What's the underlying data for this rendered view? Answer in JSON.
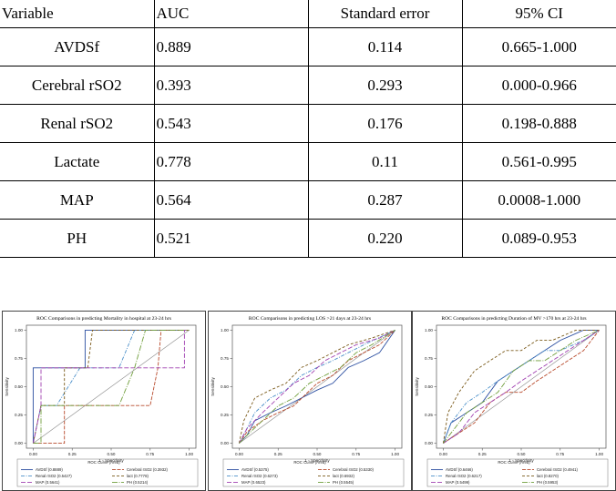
{
  "table": {
    "headers": [
      "Variable",
      "AUC",
      "Standard error",
      "95% CI"
    ],
    "rows": [
      [
        "AVDSf",
        "0.889",
        "0.114",
        "0.665-1.000"
      ],
      [
        "Cerebral rSO2",
        "0.393",
        "0.293",
        "0.000-0.966"
      ],
      [
        "Renal rSO2",
        "0.543",
        "0.176",
        "0.198-0.888"
      ],
      [
        "Lactate",
        "0.778",
        "0.11",
        "0.561-0.995"
      ],
      [
        "MAP",
        "0.564",
        "0.287",
        "0.0008-1.000"
      ],
      [
        "PH",
        "0.521",
        "0.220",
        "0.089-0.953"
      ]
    ]
  },
  "chart_data": [
    {
      "type": "line",
      "title": "ROC Comparisons in predicting Mortality in hospital at 23-24 hrs",
      "xlabel": "1 - Specificity",
      "ylabel": "Sensitivity",
      "xlim": [
        0,
        1
      ],
      "ylim": [
        0,
        1
      ],
      "xticks": [
        "0.00",
        "0.25",
        "0.50",
        "0.75",
        "1.00"
      ],
      "yticks": [
        "0.00",
        "0.25",
        "0.50",
        "0.75",
        "1.00"
      ],
      "legend_title": "ROC Curve (Area)",
      "legend_position": "bottom",
      "series": [
        {
          "name": "AVDSf (0.8889)",
          "color": "#2b4ea0",
          "dash": "",
          "points": [
            [
              0,
              0
            ],
            [
              0,
              0.667
            ],
            [
              0.333,
              0.667
            ],
            [
              0.333,
              1
            ],
            [
              1,
              1
            ]
          ]
        },
        {
          "name": "Cerebral rSO2 (0.3932)",
          "color": "#b84a2c",
          "dash": "4,1.5",
          "points": [
            [
              0,
              0
            ],
            [
              0.2,
              0
            ],
            [
              0.2,
              0.333
            ],
            [
              0.75,
              0.333
            ],
            [
              0.8,
              0.667
            ],
            [
              0.82,
              1
            ],
            [
              1,
              1
            ]
          ]
        },
        {
          "name": "Renal rSO2 (0.5427)",
          "color": "#4a8fc9",
          "dash": "4,1.5,1,1.5",
          "points": [
            [
              0,
              0
            ],
            [
              0.05,
              0.333
            ],
            [
              0.15,
              0.333
            ],
            [
              0.3,
              0.667
            ],
            [
              0.55,
              0.667
            ],
            [
              0.65,
              1
            ],
            [
              1,
              1
            ]
          ]
        },
        {
          "name": "lact (0.7778)",
          "color": "#7a5a1a",
          "dash": "3,2",
          "points": [
            [
              0,
              0
            ],
            [
              0.05,
              0.333
            ],
            [
              0.2,
              0.333
            ],
            [
              0.2,
              0.667
            ],
            [
              0.35,
              0.667
            ],
            [
              0.38,
              1
            ],
            [
              1,
              1
            ]
          ]
        },
        {
          "name": "MAP (0.5641)",
          "color": "#a040b0",
          "dash": "5,2",
          "points": [
            [
              0,
              0
            ],
            [
              0.05,
              0.333
            ],
            [
              0.05,
              0.667
            ],
            [
              0.97,
              0.667
            ],
            [
              0.97,
              1
            ],
            [
              1,
              1
            ]
          ]
        },
        {
          "name": "PH (0.5214)",
          "color": "#6f9e3a",
          "dash": "6,1.5,1,1.5",
          "points": [
            [
              0,
              0
            ],
            [
              0.05,
              0
            ],
            [
              0.05,
              0.333
            ],
            [
              0.55,
              0.333
            ],
            [
              0.65,
              0.667
            ],
            [
              0.72,
              1
            ],
            [
              1,
              1
            ]
          ]
        }
      ]
    },
    {
      "type": "line",
      "title": "ROC Comparisons in predicting LOS >21 days at 23-24 hrs",
      "xlabel": "1 - Specificity",
      "ylabel": "Sensitivity",
      "xlim": [
        0,
        1
      ],
      "ylim": [
        0,
        1
      ],
      "xticks": [
        "0.00",
        "0.25",
        "0.50",
        "0.75",
        "1.00"
      ],
      "yticks": [
        "0.00",
        "0.25",
        "0.50",
        "0.75",
        "1.00"
      ],
      "legend_title": "ROC Curve (Area)",
      "legend_position": "bottom",
      "series": [
        {
          "name": "AVDSf (0.5375)",
          "color": "#2b4ea0",
          "dash": "",
          "points": [
            [
              0,
              0
            ],
            [
              0.05,
              0.07
            ],
            [
              0.1,
              0.2
            ],
            [
              0.2,
              0.27
            ],
            [
              0.3,
              0.33
            ],
            [
              0.4,
              0.4
            ],
            [
              0.5,
              0.47
            ],
            [
              0.6,
              0.53
            ],
            [
              0.7,
              0.67
            ],
            [
              0.8,
              0.73
            ],
            [
              0.9,
              0.8
            ],
            [
              1,
              1
            ]
          ]
        },
        {
          "name": "Cerebral rSO2 (0.5330)",
          "color": "#b84a2c",
          "dash": "4,1.5",
          "points": [
            [
              0,
              0
            ],
            [
              0.05,
              0.1
            ],
            [
              0.15,
              0.2
            ],
            [
              0.25,
              0.27
            ],
            [
              0.35,
              0.33
            ],
            [
              0.5,
              0.53
            ],
            [
              0.6,
              0.6
            ],
            [
              0.7,
              0.73
            ],
            [
              0.8,
              0.8
            ],
            [
              0.9,
              0.87
            ],
            [
              1,
              1
            ]
          ]
        },
        {
          "name": "Renal rSO2 (0.6273)",
          "color": "#4a8fc9",
          "dash": "4,1.5,1,1.5",
          "points": [
            [
              0,
              0
            ],
            [
              0.05,
              0.13
            ],
            [
              0.1,
              0.27
            ],
            [
              0.2,
              0.4
            ],
            [
              0.3,
              0.47
            ],
            [
              0.4,
              0.6
            ],
            [
              0.5,
              0.67
            ],
            [
              0.6,
              0.73
            ],
            [
              0.7,
              0.8
            ],
            [
              0.8,
              0.87
            ],
            [
              1,
              1
            ]
          ]
        },
        {
          "name": "lact (0.6932)",
          "color": "#7a5a1a",
          "dash": "3,2",
          "points": [
            [
              0,
              0
            ],
            [
              0.03,
              0.2
            ],
            [
              0.1,
              0.4
            ],
            [
              0.2,
              0.47
            ],
            [
              0.3,
              0.53
            ],
            [
              0.4,
              0.67
            ],
            [
              0.5,
              0.73
            ],
            [
              0.6,
              0.8
            ],
            [
              0.7,
              0.87
            ],
            [
              0.85,
              0.93
            ],
            [
              1,
              1
            ]
          ]
        },
        {
          "name": "MAP (0.6523)",
          "color": "#a040b0",
          "dash": "5,2",
          "points": [
            [
              0,
              0
            ],
            [
              0.05,
              0.13
            ],
            [
              0.15,
              0.27
            ],
            [
              0.25,
              0.4
            ],
            [
              0.35,
              0.53
            ],
            [
              0.45,
              0.6
            ],
            [
              0.55,
              0.73
            ],
            [
              0.65,
              0.8
            ],
            [
              0.75,
              0.87
            ],
            [
              0.9,
              0.93
            ],
            [
              1,
              1
            ]
          ]
        },
        {
          "name": "PH (0.5545)",
          "color": "#6f9e3a",
          "dash": "6,1.5,1,1.5",
          "points": [
            [
              0,
              0
            ],
            [
              0.05,
              0.07
            ],
            [
              0.15,
              0.2
            ],
            [
              0.25,
              0.33
            ],
            [
              0.35,
              0.4
            ],
            [
              0.45,
              0.53
            ],
            [
              0.55,
              0.6
            ],
            [
              0.65,
              0.67
            ],
            [
              0.75,
              0.8
            ],
            [
              0.85,
              0.87
            ],
            [
              1,
              1
            ]
          ]
        }
      ]
    },
    {
      "type": "line",
      "title": "ROC Comparisons in predicting Duration of MV >170 hrs at 23-24 hrs",
      "xlabel": "1 - Specificity",
      "ylabel": "Sensitivity",
      "xlim": [
        0,
        1
      ],
      "ylim": [
        0,
        1
      ],
      "xticks": [
        "0.00",
        "0.25",
        "0.50",
        "0.75",
        "1.00"
      ],
      "yticks": [
        "0.00",
        "0.25",
        "0.50",
        "0.75",
        "1.00"
      ],
      "legend_title": "ROC Curve (Area)",
      "legend_position": "bottom",
      "series": [
        {
          "name": "AVDSf (0.6466)",
          "color": "#2b4ea0",
          "dash": "",
          "points": [
            [
              0,
              0
            ],
            [
              0.05,
              0.18
            ],
            [
              0.15,
              0.27
            ],
            [
              0.25,
              0.36
            ],
            [
              0.35,
              0.55
            ],
            [
              0.45,
              0.64
            ],
            [
              0.55,
              0.73
            ],
            [
              0.65,
              0.82
            ],
            [
              0.75,
              0.91
            ],
            [
              0.9,
              1
            ],
            [
              1,
              1
            ]
          ]
        },
        {
          "name": "Cerebral rSO2 (0.4941)",
          "color": "#b84a2c",
          "dash": "4,1.5",
          "points": [
            [
              0,
              0
            ],
            [
              0.1,
              0.09
            ],
            [
              0.2,
              0.18
            ],
            [
              0.3,
              0.36
            ],
            [
              0.4,
              0.45
            ],
            [
              0.5,
              0.45
            ],
            [
              0.6,
              0.55
            ],
            [
              0.7,
              0.64
            ],
            [
              0.8,
              0.73
            ],
            [
              0.9,
              0.82
            ],
            [
              1,
              1
            ]
          ]
        },
        {
          "name": "Renal rSO2 (0.6217)",
          "color": "#4a8fc9",
          "dash": "4,1.5,1,1.5",
          "points": [
            [
              0,
              0
            ],
            [
              0.05,
              0.18
            ],
            [
              0.15,
              0.36
            ],
            [
              0.25,
              0.45
            ],
            [
              0.35,
              0.55
            ],
            [
              0.45,
              0.64
            ],
            [
              0.55,
              0.73
            ],
            [
              0.65,
              0.82
            ],
            [
              0.75,
              0.82
            ],
            [
              0.9,
              0.91
            ],
            [
              1,
              1
            ]
          ]
        },
        {
          "name": "lact (0.8270)",
          "color": "#7a5a1a",
          "dash": "3,2",
          "points": [
            [
              0,
              0
            ],
            [
              0.03,
              0.27
            ],
            [
              0.1,
              0.45
            ],
            [
              0.2,
              0.64
            ],
            [
              0.3,
              0.73
            ],
            [
              0.4,
              0.82
            ],
            [
              0.5,
              0.82
            ],
            [
              0.6,
              0.91
            ],
            [
              0.7,
              0.91
            ],
            [
              0.85,
              1
            ],
            [
              1,
              1
            ]
          ]
        },
        {
          "name": "MAP (0.5499)",
          "color": "#a040b0",
          "dash": "5,2",
          "points": [
            [
              0,
              0
            ],
            [
              0.1,
              0.09
            ],
            [
              0.2,
              0.27
            ],
            [
              0.3,
              0.36
            ],
            [
              0.4,
              0.45
            ],
            [
              0.5,
              0.55
            ],
            [
              0.6,
              0.64
            ],
            [
              0.7,
              0.73
            ],
            [
              0.8,
              0.82
            ],
            [
              0.9,
              0.91
            ],
            [
              1,
              1
            ]
          ]
        },
        {
          "name": "PH (0.5953)",
          "color": "#6f9e3a",
          "dash": "6,1.5,1,1.5",
          "points": [
            [
              0,
              0
            ],
            [
              0.05,
              0.09
            ],
            [
              0.15,
              0.27
            ],
            [
              0.25,
              0.36
            ],
            [
              0.35,
              0.45
            ],
            [
              0.45,
              0.64
            ],
            [
              0.55,
              0.73
            ],
            [
              0.65,
              0.73
            ],
            [
              0.75,
              0.82
            ],
            [
              0.85,
              0.91
            ],
            [
              1,
              1
            ]
          ]
        }
      ]
    }
  ]
}
